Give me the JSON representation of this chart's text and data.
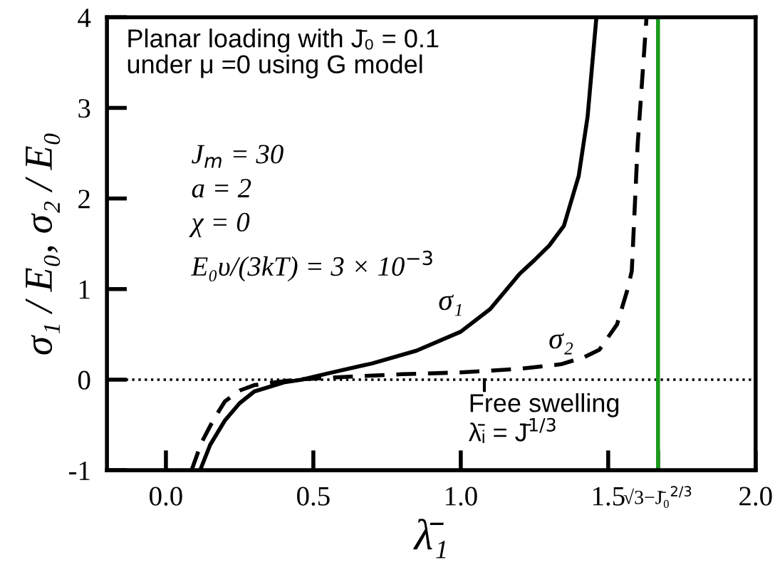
{
  "chart_data": {
    "type": "line",
    "xlabel": "λ̄₁",
    "ylabel": "σ₁ / E₀, σ₂ / E₀",
    "series": [
      {
        "name": "σ₁",
        "color": "#000000",
        "line_style": "solid",
        "x": [
          0.116,
          0.15,
          0.2,
          0.25,
          0.3,
          0.4,
          0.46,
          0.55,
          0.7,
          0.85,
          1.0,
          1.1,
          1.2,
          1.25,
          1.3,
          1.35,
          1.4,
          1.43,
          1.46
        ],
        "values": [
          -1.0,
          -0.72,
          -0.45,
          -0.26,
          -0.13,
          -0.03,
          0.0,
          0.07,
          0.18,
          0.32,
          0.53,
          0.78,
          1.17,
          1.32,
          1.48,
          1.7,
          2.25,
          2.9,
          4.0
        ]
      },
      {
        "name": "σ₂",
        "color": "#000000",
        "line_style": "dashed",
        "x": [
          0.087,
          0.12,
          0.16,
          0.2,
          0.25,
          0.3,
          0.37,
          0.44,
          0.6,
          0.8,
          1.0,
          1.2,
          1.34,
          1.42,
          1.47,
          1.53,
          1.565,
          1.58,
          1.6,
          1.63
        ],
        "values": [
          -1.0,
          -0.7,
          -0.45,
          -0.24,
          -0.12,
          -0.06,
          -0.03,
          0.0,
          0.03,
          0.06,
          0.08,
          0.12,
          0.17,
          0.25,
          0.33,
          0.61,
          0.99,
          1.2,
          2.6,
          4.0
        ]
      }
    ],
    "xlim": [
      -0.2,
      2.0
    ],
    "ylim": [
      -1,
      4
    ],
    "xticks": [
      {
        "value": 0.0,
        "label": "0.0"
      },
      {
        "value": 0.5,
        "label": "0.5"
      },
      {
        "value": 1.0,
        "label": "1.0"
      },
      {
        "value": 1.5,
        "label": "1.5"
      },
      {
        "value": 1.669,
        "label": "√3−J̄₀$^{2/3}$"
      },
      {
        "value": 2.0,
        "label": "2.0"
      }
    ],
    "yticks": [
      -1,
      0,
      1,
      2,
      3,
      4
    ],
    "ref_lines": [
      {
        "axis": "y",
        "value": 0,
        "color": "#000000",
        "line_style": "dotted"
      },
      {
        "axis": "x",
        "value": 1.669,
        "color": "#1a9a1a",
        "line_style": "solid"
      }
    ],
    "annotations": [
      "Planar loading with J̄₀ = 0.1\nunder μ =0 using G model",
      "J$_{m}$ = 30",
      "a = 2",
      "χ = 0",
      "E₀υ/(3kT) = 3 × 10$^{−3}$",
      {
        "text": "Free swelling\nλ̄ᵢ = J̄$^{1/3}$",
        "x": 1.08,
        "y": 0
      }
    ],
    "grid": false,
    "legend": false
  }
}
